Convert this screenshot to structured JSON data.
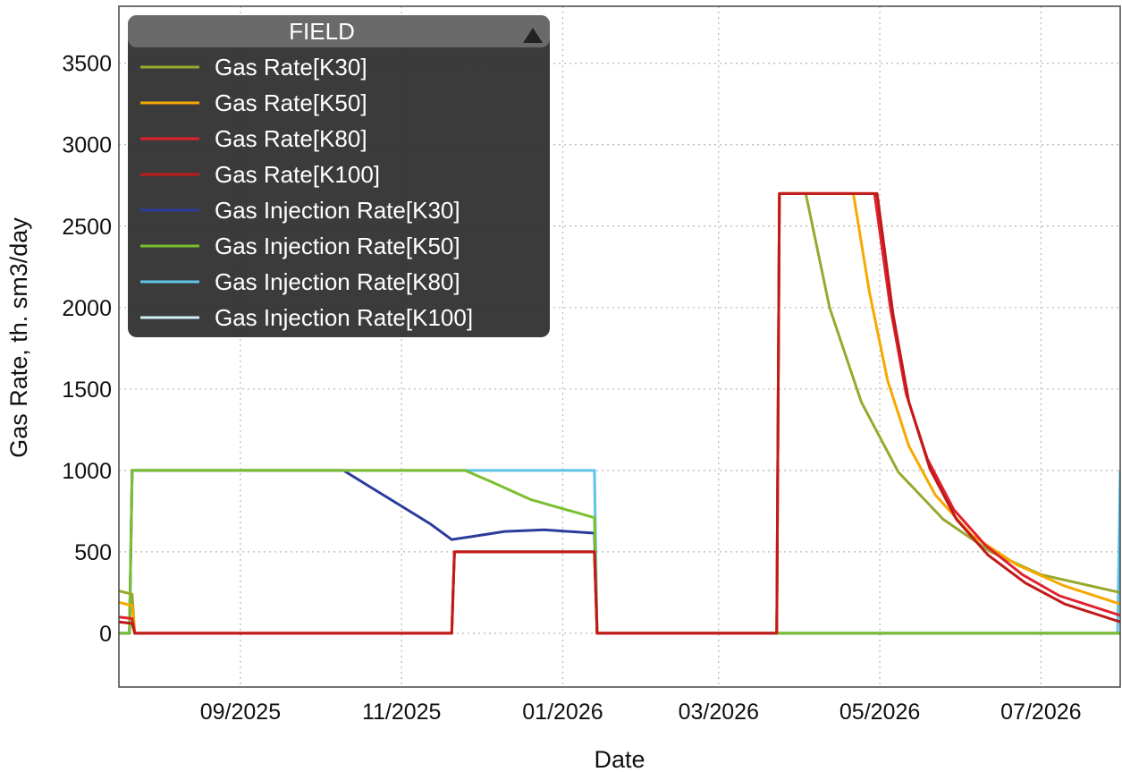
{
  "chart_data": {
    "type": "line",
    "xlabel": "Date",
    "ylabel": "Gas Rate, th. sm3/day",
    "ylim": [
      -330,
      3850
    ],
    "xlim": [
      "2025-07-17",
      "2026-07-31"
    ],
    "yticks": [
      0,
      500,
      1000,
      1500,
      2000,
      2500,
      3000,
      3500
    ],
    "xticks": [
      {
        "date": "2025-09-01",
        "label": "09/2025"
      },
      {
        "date": "2025-11-01",
        "label": "11/2025"
      },
      {
        "date": "2026-01-01",
        "label": "01/2026"
      },
      {
        "date": "2026-03-01",
        "label": "03/2026"
      },
      {
        "date": "2026-05-01",
        "label": "05/2026"
      },
      {
        "date": "2026-07-01",
        "label": "07/2026"
      }
    ],
    "grid": true,
    "legend": {
      "title": "FIELD",
      "placement": "top-left",
      "collapse_icon": "triangle-up-icon"
    },
    "series": [
      {
        "name": "Gas Rate[K30]",
        "color": "#99a82e",
        "points": [
          [
            "2025-07-17",
            260
          ],
          [
            "2025-07-22",
            240
          ],
          [
            "2025-07-23",
            0
          ],
          [
            "2025-11-20",
            0
          ],
          [
            "2025-11-21",
            500
          ],
          [
            "2026-01-13",
            500
          ],
          [
            "2026-01-14",
            0
          ],
          [
            "2026-03-23",
            0
          ],
          [
            "2026-03-24",
            2700
          ],
          [
            "2026-04-03",
            2700
          ],
          [
            "2026-04-12",
            2000
          ],
          [
            "2026-04-24",
            1420
          ],
          [
            "2026-05-08",
            990
          ],
          [
            "2026-05-25",
            700
          ],
          [
            "2026-06-12",
            500
          ],
          [
            "2026-07-01",
            360
          ],
          [
            "2026-07-31",
            250
          ]
        ]
      },
      {
        "name": "Gas Rate[K50]",
        "color": "#f7a800",
        "points": [
          [
            "2025-07-17",
            190
          ],
          [
            "2025-07-22",
            170
          ],
          [
            "2025-07-23",
            0
          ],
          [
            "2025-11-20",
            0
          ],
          [
            "2025-11-21",
            500
          ],
          [
            "2026-01-13",
            500
          ],
          [
            "2026-01-14",
            0
          ],
          [
            "2026-03-23",
            0
          ],
          [
            "2026-03-24",
            2700
          ],
          [
            "2026-04-21",
            2700
          ],
          [
            "2026-04-27",
            2100
          ],
          [
            "2026-05-04",
            1550
          ],
          [
            "2026-05-12",
            1150
          ],
          [
            "2026-05-22",
            850
          ],
          [
            "2026-06-05",
            600
          ],
          [
            "2026-06-22",
            420
          ],
          [
            "2026-07-10",
            290
          ],
          [
            "2026-07-31",
            180
          ]
        ]
      },
      {
        "name": "Gas Rate[K80]",
        "color": "#e0222e",
        "points": [
          [
            "2025-07-17",
            100
          ],
          [
            "2025-07-22",
            90
          ],
          [
            "2025-07-23",
            0
          ],
          [
            "2025-11-20",
            0
          ],
          [
            "2025-11-21",
            500
          ],
          [
            "2026-01-13",
            500
          ],
          [
            "2026-01-14",
            0
          ],
          [
            "2026-03-23",
            0
          ],
          [
            "2026-03-24",
            2700
          ],
          [
            "2026-04-29",
            2700
          ],
          [
            "2026-05-05",
            2000
          ],
          [
            "2026-05-11",
            1470
          ],
          [
            "2026-05-19",
            1070
          ],
          [
            "2026-05-29",
            760
          ],
          [
            "2026-06-10",
            540
          ],
          [
            "2026-06-24",
            360
          ],
          [
            "2026-07-08",
            230
          ],
          [
            "2026-07-31",
            110
          ]
        ]
      },
      {
        "name": "Gas Rate[K100]",
        "color": "#c01a1a",
        "points": [
          [
            "2025-07-17",
            70
          ],
          [
            "2025-07-22",
            60
          ],
          [
            "2025-07-23",
            0
          ],
          [
            "2025-11-20",
            0
          ],
          [
            "2025-11-21",
            500
          ],
          [
            "2026-01-13",
            500
          ],
          [
            "2026-01-14",
            0
          ],
          [
            "2026-03-23",
            0
          ],
          [
            "2026-03-24",
            2700
          ],
          [
            "2026-04-30",
            2700
          ],
          [
            "2026-05-06",
            1960
          ],
          [
            "2026-05-12",
            1420
          ],
          [
            "2026-05-20",
            1010
          ],
          [
            "2026-05-30",
            700
          ],
          [
            "2026-06-11",
            480
          ],
          [
            "2026-06-25",
            310
          ],
          [
            "2026-07-10",
            180
          ],
          [
            "2026-07-31",
            70
          ]
        ]
      },
      {
        "name": "Gas Injection Rate[K30]",
        "color": "#2a3b9c",
        "points": [
          [
            "2025-07-17",
            0
          ],
          [
            "2025-07-21",
            0
          ],
          [
            "2025-07-22",
            1000
          ],
          [
            "2025-10-10",
            1000
          ],
          [
            "2025-10-20",
            900
          ],
          [
            "2025-11-01",
            780
          ],
          [
            "2025-11-12",
            670
          ],
          [
            "2025-11-20",
            575
          ],
          [
            "2025-11-28",
            595
          ],
          [
            "2025-12-10",
            625
          ],
          [
            "2025-12-25",
            635
          ],
          [
            "2026-01-13",
            615
          ],
          [
            "2026-01-14",
            0
          ],
          [
            "2026-07-31",
            0
          ]
        ]
      },
      {
        "name": "Gas Injection Rate[K50]",
        "color": "#7bbf2e",
        "points": [
          [
            "2025-07-17",
            0
          ],
          [
            "2025-07-21",
            0
          ],
          [
            "2025-07-22",
            1000
          ],
          [
            "2025-11-25",
            1000
          ],
          [
            "2025-12-05",
            930
          ],
          [
            "2025-12-20",
            820
          ],
          [
            "2026-01-13",
            710
          ],
          [
            "2026-01-14",
            0
          ],
          [
            "2026-07-31",
            0
          ]
        ]
      },
      {
        "name": "Gas Injection Rate[K80]",
        "color": "#5fc4ea",
        "points": [
          [
            "2025-07-17",
            0
          ],
          [
            "2025-07-21",
            0
          ],
          [
            "2025-07-22",
            1000
          ],
          [
            "2026-01-13",
            1000
          ],
          [
            "2026-01-14",
            0
          ],
          [
            "2026-07-30",
            0
          ],
          [
            "2026-07-31",
            1000
          ]
        ]
      },
      {
        "name": "Gas Injection Rate[K100]",
        "color": "#cfeef7",
        "points": [
          [
            "2025-07-17",
            0
          ],
          [
            "2025-07-21",
            0
          ],
          [
            "2025-07-22",
            1000
          ],
          [
            "2026-01-13",
            1000
          ],
          [
            "2026-01-14",
            0
          ],
          [
            "2026-07-31",
            0
          ]
        ]
      }
    ]
  }
}
